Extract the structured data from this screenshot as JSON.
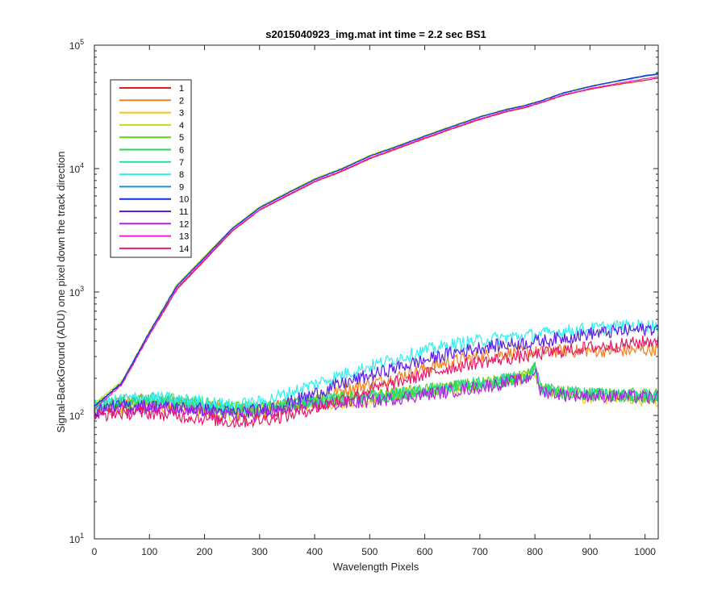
{
  "chart_data": {
    "type": "line",
    "title": "s2015040923_img.mat int time = 2.2 sec   BS1",
    "xlabel": "Wavelength Pixels",
    "ylabel": "Signal-BackGround (ADU) one pixel down the track direction",
    "xlim": [
      0,
      1024
    ],
    "ylim": [
      10,
      100000
    ],
    "yscale": "log",
    "grid": false,
    "legend_position": "top-left",
    "x_ticks": [
      {
        "value": 0,
        "label": "0"
      },
      {
        "value": 100,
        "label": "100"
      },
      {
        "value": 200,
        "label": "200"
      },
      {
        "value": 300,
        "label": "300"
      },
      {
        "value": 400,
        "label": "400"
      },
      {
        "value": 500,
        "label": "500"
      },
      {
        "value": 600,
        "label": "600"
      },
      {
        "value": 700,
        "label": "700"
      },
      {
        "value": 800,
        "label": "800"
      },
      {
        "value": 900,
        "label": "900"
      },
      {
        "value": 1000,
        "label": "1000"
      }
    ],
    "y_ticks": [
      {
        "value": 10,
        "base": "10",
        "exp": "1"
      },
      {
        "value": 100,
        "base": "10",
        "exp": "2"
      },
      {
        "value": 1000,
        "base": "10",
        "exp": "3"
      },
      {
        "value": 10000,
        "base": "10",
        "exp": "4"
      },
      {
        "value": 100000,
        "base": "10",
        "exp": "5"
      }
    ],
    "x": [
      0,
      50,
      100,
      150,
      200,
      250,
      300,
      350,
      400,
      450,
      500,
      550,
      600,
      650,
      700,
      750,
      780,
      790,
      800,
      810,
      850,
      900,
      950,
      1000,
      1024
    ],
    "series": [
      {
        "name": "1",
        "color": "#e6191a",
        "values": [
          120,
          180,
          450,
          1050,
          1800,
          3100,
          4600,
          6000,
          7800,
          9500,
          12000,
          14500,
          17500,
          21000,
          25000,
          29000,
          31000,
          32000,
          33000,
          34000,
          39000,
          44000,
          48000,
          52000,
          54000
        ]
      },
      {
        "name": "2",
        "color": "#f28022",
        "values": [
          115,
          130,
          130,
          125,
          118,
          110,
          112,
          122,
          138,
          160,
          180,
          205,
          240,
          275,
          300,
          318,
          325,
          325,
          325,
          326,
          332,
          335,
          335,
          340,
          345
        ]
      },
      {
        "name": "3",
        "color": "#f0c815",
        "values": [
          110,
          115,
          120,
          115,
          110,
          100,
          105,
          115,
          125,
          130,
          135,
          145,
          155,
          165,
          175,
          190,
          200,
          210,
          235,
          160,
          150,
          140,
          140,
          135,
          130
        ]
      },
      {
        "name": "4",
        "color": "#b6e01e",
        "values": [
          125,
          190,
          480,
          1150,
          1950,
          3300,
          4900,
          6400,
          8300,
          10100,
          12800,
          15300,
          18500,
          22200,
          26500,
          30500,
          32500,
          33500,
          34500,
          35500,
          41000,
          46500,
          51500,
          56500,
          58500
        ]
      },
      {
        "name": "5",
        "color": "#5ed41a",
        "values": [
          120,
          130,
          135,
          130,
          125,
          115,
          115,
          120,
          130,
          138,
          145,
          150,
          160,
          170,
          180,
          195,
          205,
          215,
          245,
          165,
          155,
          150,
          148,
          145,
          145
        ]
      },
      {
        "name": "6",
        "color": "#23d95a",
        "values": [
          115,
          125,
          130,
          128,
          120,
          110,
          112,
          118,
          128,
          135,
          140,
          148,
          158,
          168,
          178,
          192,
          202,
          212,
          242,
          162,
          152,
          148,
          146,
          142,
          142
        ]
      },
      {
        "name": "7",
        "color": "#25d9a4",
        "values": [
          118,
          128,
          132,
          128,
          120,
          110,
          112,
          120,
          130,
          136,
          142,
          148,
          158,
          168,
          180,
          194,
          205,
          215,
          248,
          164,
          154,
          150,
          148,
          146,
          146
        ]
      },
      {
        "name": "8",
        "color": "#2ef0f0",
        "values": [
          118,
          135,
          140,
          135,
          130,
          120,
          128,
          150,
          180,
          215,
          250,
          290,
          335,
          375,
          405,
          430,
          440,
          445,
          450,
          455,
          480,
          505,
          525,
          535,
          540
        ]
      },
      {
        "name": "9",
        "color": "#1f8fd6",
        "values": [
          118,
          185,
          470,
          1120,
          1900,
          3250,
          4800,
          6300,
          8150,
          9950,
          12600,
          15100,
          18300,
          21900,
          26200,
          30200,
          32200,
          33200,
          34200,
          35200,
          40600,
          46000,
          51000,
          56000,
          58000
        ]
      },
      {
        "name": "10",
        "color": "#0f2fe6",
        "values": [
          118,
          185,
          470,
          1120,
          1900,
          3250,
          4800,
          6300,
          8150,
          9950,
          12600,
          15100,
          18300,
          21900,
          26200,
          30200,
          32200,
          33200,
          34200,
          35200,
          40800,
          46300,
          51400,
          56600,
          58800
        ]
      },
      {
        "name": "11",
        "color": "#5b1fe6",
        "values": [
          110,
          120,
          120,
          115,
          112,
          105,
          110,
          125,
          150,
          180,
          210,
          245,
          280,
          320,
          355,
          375,
          385,
          390,
          395,
          400,
          425,
          460,
          480,
          500,
          510
        ]
      },
      {
        "name": "12",
        "color": "#b51fe6",
        "values": [
          105,
          115,
          115,
          110,
          105,
          98,
          102,
          110,
          120,
          125,
          130,
          138,
          148,
          158,
          170,
          185,
          195,
          205,
          235,
          158,
          148,
          145,
          143,
          140,
          140
        ]
      },
      {
        "name": "13",
        "color": "#f01fcf",
        "values": [
          112,
          178,
          450,
          1080,
          1840,
          3150,
          4650,
          6100,
          7900,
          9650,
          12200,
          14700,
          17800,
          21300,
          25400,
          29400,
          31400,
          32400,
          33400,
          34400,
          39500,
          44500,
          49000,
          53500,
          55500
        ]
      },
      {
        "name": "14",
        "color": "#e6196b",
        "values": [
          100,
          105,
          105,
          100,
          95,
          88,
          92,
          100,
          115,
          135,
          160,
          185,
          215,
          245,
          270,
          290,
          300,
          305,
          310,
          315,
          335,
          355,
          370,
          395,
          410
        ]
      }
    ]
  }
}
